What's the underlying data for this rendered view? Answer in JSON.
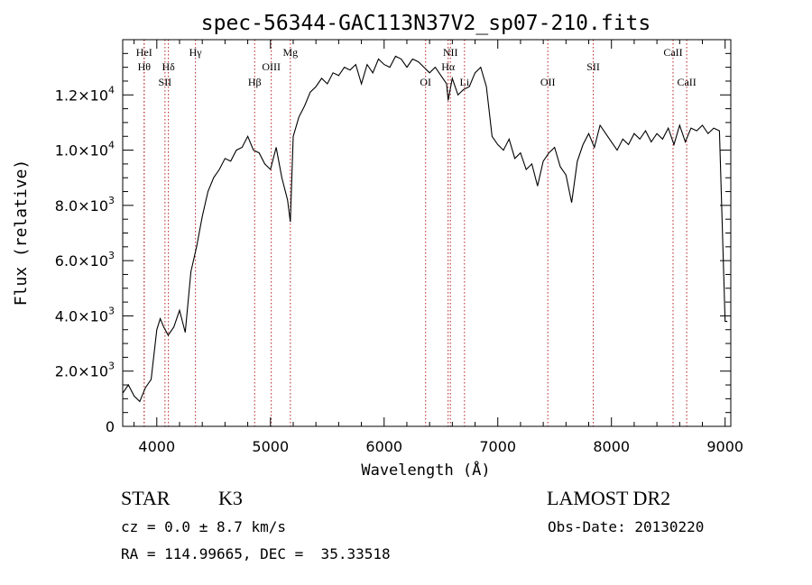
{
  "chart_data": {
    "type": "line",
    "title": "spec-56344-GAC113N37V2_sp07-210.fits",
    "xlabel": "Wavelength (Å)",
    "ylabel": "Flux (relative)",
    "xlim": [
      3700,
      9050
    ],
    "ylim": [
      0,
      14000
    ],
    "xticks": [
      {
        "value": 4000,
        "label": "4000"
      },
      {
        "value": 5000,
        "label": "5000"
      },
      {
        "value": 6000,
        "label": "6000"
      },
      {
        "value": 7000,
        "label": "7000"
      },
      {
        "value": 8000,
        "label": "8000"
      },
      {
        "value": 9000,
        "label": "9000"
      }
    ],
    "yticks": [
      {
        "value": 0,
        "mant": "0",
        "exp": ""
      },
      {
        "value": 2000,
        "mant": "2.0×10",
        "exp": "3"
      },
      {
        "value": 4000,
        "mant": "4.0×10",
        "exp": "3"
      },
      {
        "value": 6000,
        "mant": "6.0×10",
        "exp": "3"
      },
      {
        "value": 8000,
        "mant": "8.0×10",
        "exp": "3"
      },
      {
        "value": 10000,
        "mant": "1.0×10",
        "exp": "4"
      },
      {
        "value": 12000,
        "mant": "1.2×10",
        "exp": "4"
      }
    ],
    "series": [
      {
        "x": [
          3700,
          3750,
          3800,
          3850,
          3900,
          3950,
          4000,
          4030,
          4060,
          4100,
          4150,
          4200,
          4250,
          4300,
          4350,
          4400,
          4450,
          4500,
          4550,
          4600,
          4650,
          4700,
          4750,
          4800,
          4850,
          4900,
          4950,
          5000,
          5050,
          5100,
          5150,
          5175,
          5200,
          5250,
          5300,
          5350,
          5400,
          5450,
          5500,
          5550,
          5600,
          5650,
          5700,
          5750,
          5800,
          5850,
          5900,
          5950,
          6000,
          6050,
          6100,
          6150,
          6200,
          6250,
          6300,
          6350,
          6400,
          6450,
          6500,
          6550,
          6563,
          6600,
          6650,
          6700,
          6750,
          6800,
          6850,
          6900,
          6950,
          7000,
          7050,
          7100,
          7150,
          7200,
          7250,
          7300,
          7350,
          7400,
          7450,
          7500,
          7550,
          7600,
          7650,
          7700,
          7750,
          7800,
          7850,
          7900,
          7950,
          8000,
          8050,
          8100,
          8150,
          8200,
          8250,
          8300,
          8350,
          8400,
          8450,
          8500,
          8550,
          8600,
          8650,
          8700,
          8750,
          8800,
          8850,
          8900,
          8950,
          9000,
          9020
        ],
        "y": [
          1200,
          1500,
          1100,
          900,
          1400,
          1700,
          3500,
          3900,
          3600,
          3300,
          3600,
          4200,
          3400,
          5600,
          6500,
          7600,
          8500,
          9000,
          9300,
          9700,
          9600,
          10000,
          10100,
          10500,
          10000,
          9900,
          9500,
          9300,
          10100,
          9000,
          8200,
          7400,
          10500,
          11200,
          11600,
          12100,
          12300,
          12600,
          12400,
          12800,
          12700,
          13000,
          12900,
          13100,
          12400,
          13100,
          12800,
          13300,
          13100,
          13000,
          13400,
          13300,
          13000,
          13300,
          13200,
          13000,
          12800,
          13000,
          12700,
          12400,
          11800,
          12600,
          12000,
          12200,
          12300,
          12800,
          13000,
          12300,
          10500,
          10200,
          10000,
          10400,
          9700,
          9900,
          9300,
          9500,
          8700,
          9600,
          9900,
          10100,
          9400,
          9100,
          8100,
          9600,
          10200,
          10600,
          10100,
          10900,
          10600,
          10300,
          10000,
          10400,
          10200,
          10600,
          10400,
          10700,
          10300,
          10600,
          10400,
          10800,
          10200,
          10900,
          10300,
          10800,
          10700,
          10900,
          10600,
          10800,
          10700,
          3800,
          3800
        ]
      }
    ],
    "lines": [
      {
        "x": 3889,
        "label": "HeI",
        "row": 0
      },
      {
        "x": 3889,
        "label": "Hθ",
        "row": 1
      },
      {
        "x": 4102,
        "label": "Hδ",
        "row": 1
      },
      {
        "x": 4072,
        "label": "SII",
        "row": 2
      },
      {
        "x": 4340,
        "label": "Hγ",
        "row": 0
      },
      {
        "x": 4861,
        "label": "Hβ",
        "row": 2
      },
      {
        "x": 5007,
        "label": "OIII",
        "row": 1
      },
      {
        "x": 5175,
        "label": "Mg",
        "row": 0
      },
      {
        "x": 6365,
        "label": "OI",
        "row": 2
      },
      {
        "x": 6563,
        "label": "Hα",
        "row": 1
      },
      {
        "x": 6583,
        "label": "NII",
        "row": 0
      },
      {
        "x": 6707,
        "label": "Li",
        "row": 2
      },
      {
        "x": 7440,
        "label": "OII",
        "row": 2
      },
      {
        "x": 7840,
        "label": "SII",
        "row": 1
      },
      {
        "x": 8542,
        "label": "CaII",
        "row": 0
      },
      {
        "x": 8662,
        "label": "CaII",
        "row": 2
      }
    ],
    "line_color": "#b41e1e"
  },
  "info": {
    "class": "STAR",
    "subclass": "K3",
    "survey": "LAMOST DR2",
    "cz": "cz = 0.0 ± 8.7 km/s",
    "obsdate": "Obs-Date: 20130220",
    "radec": "RA = 114.99665, DEC =  35.33518"
  }
}
